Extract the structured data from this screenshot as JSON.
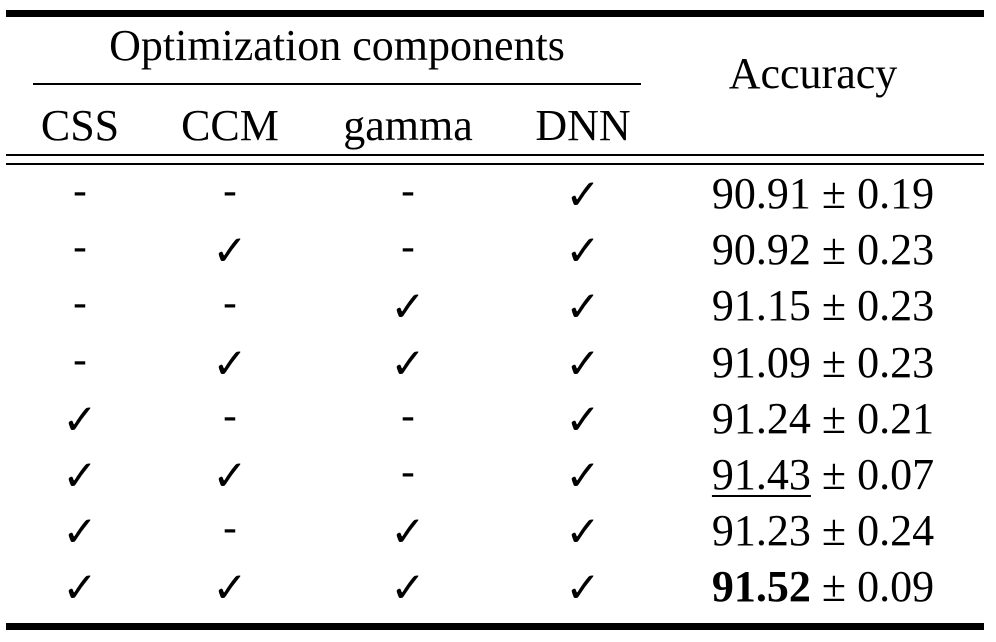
{
  "table": {
    "group_header": "Optimization components",
    "accuracy_header": "Accuracy",
    "columns": [
      "CSS",
      "CCM",
      "gamma",
      "DNN"
    ],
    "rows": [
      {
        "css": "-",
        "ccm": "-",
        "gamma": "-",
        "dnn": "✓",
        "accuracy": "90.91",
        "pm": "± 0.19",
        "style": "normal"
      },
      {
        "css": "-",
        "ccm": "✓",
        "gamma": "-",
        "dnn": "✓",
        "accuracy": "90.92",
        "pm": "± 0.23",
        "style": "normal"
      },
      {
        "css": "-",
        "ccm": "-",
        "gamma": "✓",
        "dnn": "✓",
        "accuracy": "91.15",
        "pm": "± 0.23",
        "style": "normal"
      },
      {
        "css": "-",
        "ccm": "✓",
        "gamma": "✓",
        "dnn": "✓",
        "accuracy": "91.09",
        "pm": "± 0.23",
        "style": "normal"
      },
      {
        "css": "✓",
        "ccm": "-",
        "gamma": "-",
        "dnn": "✓",
        "accuracy": "91.24",
        "pm": "± 0.21",
        "style": "normal"
      },
      {
        "css": "✓",
        "ccm": "✓",
        "gamma": "-",
        "dnn": "✓",
        "accuracy": "91.43",
        "pm": "± 0.07",
        "style": "underline"
      },
      {
        "css": "✓",
        "ccm": "-",
        "gamma": "✓",
        "dnn": "✓",
        "accuracy": "91.23",
        "pm": "± 0.24",
        "style": "normal"
      },
      {
        "css": "✓",
        "ccm": "✓",
        "gamma": "✓",
        "dnn": "✓",
        "accuracy": "91.52",
        "pm": "± 0.09",
        "style": "bold"
      }
    ]
  }
}
